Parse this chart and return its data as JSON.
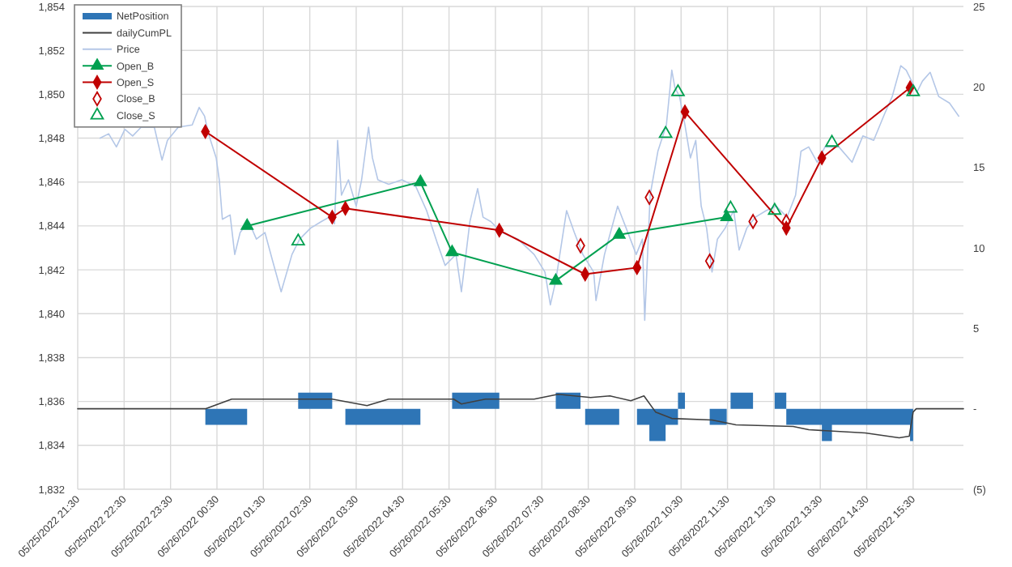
{
  "chart_data": {
    "type": "line",
    "grid": true,
    "legend": "top left",
    "xlim": [
      "2022-05-25T21:30",
      "2022-05-26T16:35"
    ],
    "xticks": [
      {
        "value": "2022-05-25T21:30",
        "label": "05/25/2022 21:30"
      },
      {
        "value": "2022-05-25T22:30",
        "label": "05/25/2022 22:30"
      },
      {
        "value": "2022-05-25T23:30",
        "label": "05/25/2022 23:30"
      },
      {
        "value": "2022-05-26T00:30",
        "label": "05/26/2022 00:30"
      },
      {
        "value": "2022-05-26T01:30",
        "label": "05/26/2022 01:30"
      },
      {
        "value": "2022-05-26T02:30",
        "label": "05/26/2022 02:30"
      },
      {
        "value": "2022-05-26T03:30",
        "label": "05/26/2022 03:30"
      },
      {
        "value": "2022-05-26T04:30",
        "label": "05/26/2022 04:30"
      },
      {
        "value": "2022-05-26T05:30",
        "label": "05/26/2022 05:30"
      },
      {
        "value": "2022-05-26T06:30",
        "label": "05/26/2022 06:30"
      },
      {
        "value": "2022-05-26T07:30",
        "label": "05/26/2022 07:30"
      },
      {
        "value": "2022-05-26T08:30",
        "label": "05/26/2022 08:30"
      },
      {
        "value": "2022-05-26T09:30",
        "label": "05/26/2022 09:30"
      },
      {
        "value": "2022-05-26T10:30",
        "label": "05/26/2022 10:30"
      },
      {
        "value": "2022-05-26T11:30",
        "label": "05/26/2022 11:30"
      },
      {
        "value": "2022-05-26T12:30",
        "label": "05/26/2022 12:30"
      },
      {
        "value": "2022-05-26T13:30",
        "label": "05/26/2022 13:30"
      },
      {
        "value": "2022-05-26T14:30",
        "label": "05/26/2022 14:30"
      },
      {
        "value": "2022-05-26T15:30",
        "label": "05/26/2022 15:30"
      }
    ],
    "ylim": [
      1832,
      1854
    ],
    "yticks": [
      {
        "value": 1832,
        "label": "1,832"
      },
      {
        "value": 1834,
        "label": "1,834"
      },
      {
        "value": 1836,
        "label": "1,836"
      },
      {
        "value": 1838,
        "label": "1,838"
      },
      {
        "value": 1840,
        "label": "1,840"
      },
      {
        "value": 1842,
        "label": "1,842"
      },
      {
        "value": 1844,
        "label": "1,844"
      },
      {
        "value": 1846,
        "label": "1,846"
      },
      {
        "value": 1848,
        "label": "1,848"
      },
      {
        "value": 1850,
        "label": "1,850"
      },
      {
        "value": 1852,
        "label": "1,852"
      },
      {
        "value": 1854,
        "label": "1,854"
      }
    ],
    "y2lim": [
      -5,
      25
    ],
    "y2ticks": [
      {
        "value": -5,
        "label": "(5)"
      },
      {
        "value": 0,
        "label": "-"
      },
      5,
      10,
      15,
      20,
      25
    ],
    "series": [
      {
        "name": "NetPosition",
        "type": "area",
        "axis": "y2",
        "color": "#2e75b6",
        "x": [
          "2022-05-25T21:30",
          "2022-05-26T00:15",
          "2022-05-26T01:09",
          "2022-05-26T02:15",
          "2022-05-26T02:59",
          "2022-05-26T03:16",
          "2022-05-26T04:53",
          "2022-05-26T05:34",
          "2022-05-26T06:35",
          "2022-05-26T07:48",
          "2022-05-26T08:20",
          "2022-05-26T08:26",
          "2022-05-26T09:10",
          "2022-05-26T09:33",
          "2022-05-26T09:49",
          "2022-05-26T10:10",
          "2022-05-26T10:26",
          "2022-05-26T10:35",
          "2022-05-26T11:07",
          "2022-05-26T11:29",
          "2022-05-26T11:34",
          "2022-05-26T12:03",
          "2022-05-26T12:31",
          "2022-05-26T12:46",
          "2022-05-26T13:32",
          "2022-05-26T13:45",
          "2022-05-26T15:26",
          "2022-05-26T15:30",
          "2022-05-26T16:35"
        ],
        "values": [
          0,
          -1,
          0,
          1,
          0,
          -1,
          0,
          1,
          0,
          1,
          0,
          -1,
          0,
          -1,
          -2,
          -1,
          1,
          0,
          -1,
          0,
          1,
          0,
          1,
          -1,
          -2,
          -1,
          -2,
          0,
          0
        ]
      },
      {
        "name": "dailyCumPL",
        "axis": "y2",
        "color": "#404040",
        "marker": "none",
        "x": [
          "2022-05-25T21:30",
          "2022-05-26T00:15",
          "2022-05-26T00:49",
          "2022-05-26T02:59",
          "2022-05-26T03:44",
          "2022-05-26T04:12",
          "2022-05-26T05:36",
          "2022-05-26T05:46",
          "2022-05-26T06:17",
          "2022-05-26T07:20",
          "2022-05-26T07:51",
          "2022-05-26T08:33",
          "2022-05-26T08:58",
          "2022-05-26T09:25",
          "2022-05-26T09:42",
          "2022-05-26T09:57",
          "2022-05-26T10:18",
          "2022-05-26T11:10",
          "2022-05-26T11:41",
          "2022-05-26T12:55",
          "2022-05-26T13:15",
          "2022-05-26T14:28",
          "2022-05-26T15:12",
          "2022-05-26T15:25",
          "2022-05-26T15:30",
          "2022-05-26T15:34",
          "2022-05-26T16:35"
        ],
        "values": [
          0,
          0,
          0.6,
          0.6,
          0.2,
          0.6,
          0.6,
          0.3,
          0.6,
          0.6,
          0.9,
          0.7,
          0.8,
          0.5,
          0.8,
          -0.2,
          -0.6,
          -0.7,
          -1,
          -1.1,
          -1.3,
          -1.5,
          -1.8,
          -1.7,
          -0.2,
          0,
          0
        ]
      },
      {
        "name": "Price",
        "color": "#b4c7e7",
        "marker": "none",
        "x": [
          "2022-05-25T21:59",
          "2022-05-25T22:10",
          "2022-05-25T22:20",
          "2022-05-25T22:31",
          "2022-05-25T22:41",
          "2022-05-25T22:52",
          "2022-05-25T23:09",
          "2022-05-25T23:19",
          "2022-05-25T23:26",
          "2022-05-25T23:40",
          "2022-05-25T23:58",
          "2022-05-26T00:07",
          "2022-05-26T00:14",
          "2022-05-26T00:19",
          "2022-05-26T00:29",
          "2022-05-26T00:33",
          "2022-05-26T00:37",
          "2022-05-26T00:47",
          "2022-05-26T00:53",
          "2022-05-26T01:00",
          "2022-05-26T01:11",
          "2022-05-26T01:21",
          "2022-05-26T01:32",
          "2022-05-26T01:42",
          "2022-05-26T01:53",
          "2022-05-26T02:07",
          "2022-05-26T02:17",
          "2022-05-26T02:31",
          "2022-05-26T02:45",
          "2022-05-26T02:55",
          "2022-05-26T03:02",
          "2022-05-26T03:06",
          "2022-05-26T03:11",
          "2022-05-26T03:20",
          "2022-05-26T03:30",
          "2022-05-26T03:37",
          "2022-05-26T03:46",
          "2022-05-26T03:51",
          "2022-05-26T03:58",
          "2022-05-26T04:12",
          "2022-05-26T04:29",
          "2022-05-26T04:47",
          "2022-05-26T05:01",
          "2022-05-26T05:15",
          "2022-05-26T05:25",
          "2022-05-26T05:39",
          "2022-05-26T05:46",
          "2022-05-26T05:57",
          "2022-05-26T06:07",
          "2022-05-26T06:14",
          "2022-05-26T06:24",
          "2022-05-26T06:38",
          "2022-05-26T06:59",
          "2022-05-26T07:20",
          "2022-05-26T07:34",
          "2022-05-26T07:41",
          "2022-05-26T07:48",
          "2022-05-26T08:02",
          "2022-05-26T08:12",
          "2022-05-26T08:23",
          "2022-05-26T08:37",
          "2022-05-26T08:40",
          "2022-05-26T08:51",
          "2022-05-26T09:08",
          "2022-05-26T09:19",
          "2022-05-26T09:32",
          "2022-05-26T09:40",
          "2022-05-26T09:43",
          "2022-05-26T09:50",
          "2022-05-26T10:00",
          "2022-05-26T10:11",
          "2022-05-26T10:18",
          "2022-05-26T10:22",
          "2022-05-26T10:28",
          "2022-05-26T10:35",
          "2022-05-26T10:42",
          "2022-05-26T10:49",
          "2022-05-26T10:56",
          "2022-05-26T11:03",
          "2022-05-26T11:10",
          "2022-05-26T11:17",
          "2022-05-26T11:27",
          "2022-05-26T11:38",
          "2022-05-26T11:45",
          "2022-05-26T11:55",
          "2022-05-26T12:06",
          "2022-05-26T12:20",
          "2022-05-26T12:33",
          "2022-05-26T12:47",
          "2022-05-26T12:58",
          "2022-05-26T13:05",
          "2022-05-26T13:15",
          "2022-05-26T13:26",
          "2022-05-26T13:36",
          "2022-05-26T13:54",
          "2022-05-26T14:11",
          "2022-05-26T14:25",
          "2022-05-26T14:39",
          "2022-05-26T14:53",
          "2022-05-26T15:03",
          "2022-05-26T15:14",
          "2022-05-26T15:21",
          "2022-05-26T15:35",
          "2022-05-26T15:42",
          "2022-05-26T15:52",
          "2022-05-26T16:03",
          "2022-05-26T16:17",
          "2022-05-26T16:29"
        ],
        "values": [
          1848.0,
          1848.2,
          1847.6,
          1848.4,
          1848.1,
          1848.5,
          1848.5,
          1847.0,
          1847.9,
          1848.5,
          1848.6,
          1849.4,
          1849.0,
          1848.2,
          1847.1,
          1846.1,
          1844.3,
          1844.5,
          1842.7,
          1843.7,
          1844.2,
          1843.4,
          1843.7,
          1842.4,
          1841.0,
          1842.7,
          1843.4,
          1843.9,
          1844.2,
          1844.4,
          1844.1,
          1847.9,
          1845.4,
          1846.1,
          1844.9,
          1846.1,
          1848.5,
          1847.1,
          1846.1,
          1845.9,
          1846.1,
          1845.8,
          1844.7,
          1843.2,
          1842.2,
          1842.7,
          1841.0,
          1844.2,
          1845.7,
          1844.4,
          1844.2,
          1843.7,
          1843.4,
          1842.7,
          1841.9,
          1840.4,
          1841.5,
          1844.7,
          1843.7,
          1842.7,
          1841.9,
          1840.6,
          1842.7,
          1844.9,
          1843.9,
          1842.7,
          1843.4,
          1839.7,
          1845.4,
          1847.4,
          1848.6,
          1851.1,
          1850.3,
          1849.9,
          1848.6,
          1847.1,
          1847.9,
          1844.9,
          1843.9,
          1841.9,
          1843.4,
          1843.9,
          1844.7,
          1842.9,
          1843.9,
          1844.4,
          1844.7,
          1844.9,
          1844.4,
          1845.4,
          1847.4,
          1847.6,
          1846.9,
          1847.6,
          1847.6,
          1846.9,
          1848.1,
          1847.9,
          1849.1,
          1849.9,
          1851.3,
          1851.1,
          1850.1,
          1850.6,
          1851.0,
          1849.9,
          1849.6,
          1849.0
        ]
      },
      {
        "name": "Open_B",
        "color": "#00a050",
        "marker": "triangle",
        "x": [
          "2022-05-26T01:09",
          "2022-05-26T04:53",
          "2022-05-26T05:34",
          "2022-05-26T07:48",
          "2022-05-26T09:10",
          "2022-05-26T11:29"
        ],
        "values": [
          1844.0,
          1846.0,
          1842.8,
          1841.5,
          1843.6,
          1844.4
        ]
      },
      {
        "name": "Open_S",
        "color": "#c00000",
        "marker": "diamond",
        "x": [
          "2022-05-26T00:15",
          "2022-05-26T02:59",
          "2022-05-26T03:16",
          "2022-05-26T06:35",
          "2022-05-26T08:26",
          "2022-05-26T09:33",
          "2022-05-26T10:35",
          "2022-05-26T12:46",
          "2022-05-26T13:32",
          "2022-05-26T15:26"
        ],
        "values": [
          1848.3,
          1844.4,
          1844.8,
          1843.8,
          1841.8,
          1842.1,
          1849.2,
          1843.9,
          1847.1,
          1850.3
        ]
      },
      {
        "name": "Close_B",
        "type": "scatter",
        "color": "#c00000",
        "marker": "diamond",
        "x": [
          "2022-05-26T08:20",
          "2022-05-26T09:49",
          "2022-05-26T11:07",
          "2022-05-26T12:03",
          "2022-05-26T12:46"
        ],
        "values": [
          1843.1,
          1845.3,
          1842.4,
          1844.2,
          1844.2
        ]
      },
      {
        "name": "Close_S",
        "type": "scatter",
        "color": "#00a050",
        "marker": "triangle",
        "x": [
          "2022-05-26T02:15",
          "2022-05-26T10:10",
          "2022-05-26T10:26",
          "2022-05-26T11:34",
          "2022-05-26T12:31",
          "2022-05-26T13:45",
          "2022-05-26T15:30"
        ],
        "values": [
          1843.3,
          1848.2,
          1850.1,
          1844.8,
          1844.7,
          1847.8,
          1850.1
        ]
      }
    ]
  }
}
